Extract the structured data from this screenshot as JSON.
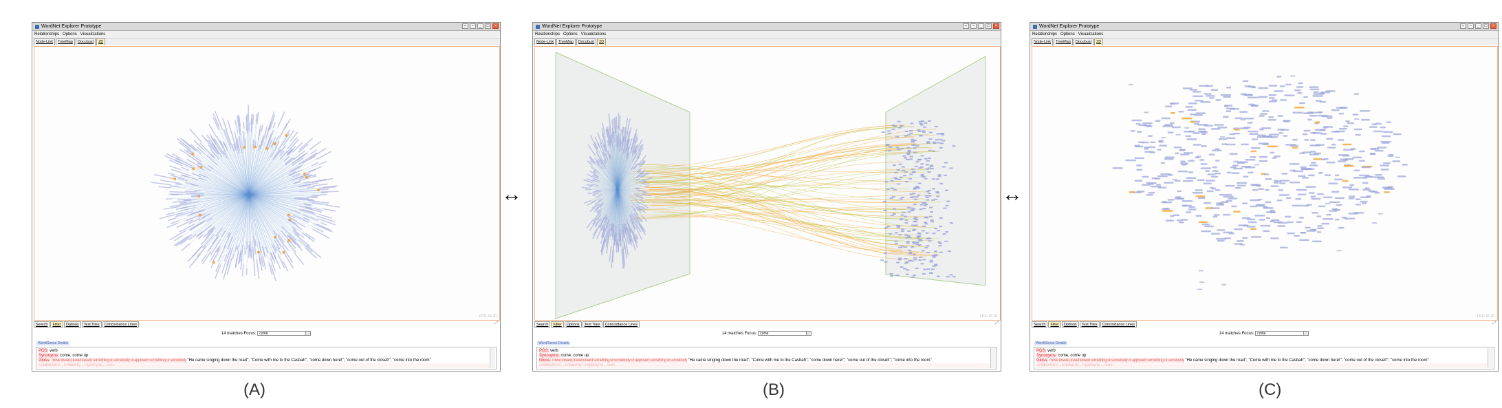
{
  "window_title": "WordNet Explorer Prototype",
  "menu": [
    "Relationships",
    "Options",
    "Visualizations"
  ],
  "view_tabs": [
    "Node-Link",
    "TreeMap",
    "Docubust",
    "2D"
  ],
  "bottom_tabs": [
    "Search",
    "Filter",
    "Options",
    "Text Tiles",
    "Concordance Lines"
  ],
  "active_bottom_tab": "Filter",
  "filter": {
    "matches": "14 matches",
    "focus_label": "Focus:",
    "focus_value": "come"
  },
  "sense_header": "Word/Sense Details",
  "fps": "FPS: 16.20",
  "details": {
    "pos_label": "POS:",
    "pos_value": "verb",
    "syn_label": "Synonyms:",
    "syn_value": "come, come up",
    "gloss_label": "Gloss:",
    "gloss_obscured": "move toward, travel toward something or somebody or approach something or somebody",
    "gloss_examples": "\"He came singing down the road\"; \"Come with me to the Casbah\"; \"come down here!\"; \"come out of the closet!\"; \"come into the room\"",
    "footer_obscured": "Entailed Items ... Entailed by ... Hypernyms ... more"
  },
  "panels": [
    {
      "caption": "(A)",
      "view": "radial tree"
    },
    {
      "caption": "(B)",
      "view": "3D linked planes"
    },
    {
      "caption": "(C)",
      "view": "scatter word cloud"
    }
  ],
  "arrow": "↔",
  "colors": {
    "accent": "#f0b38a",
    "node": "#9aa3d8",
    "edge": "#5a8fd1",
    "highlight": "#f6a83b",
    "link_green": "#b8c94a"
  }
}
